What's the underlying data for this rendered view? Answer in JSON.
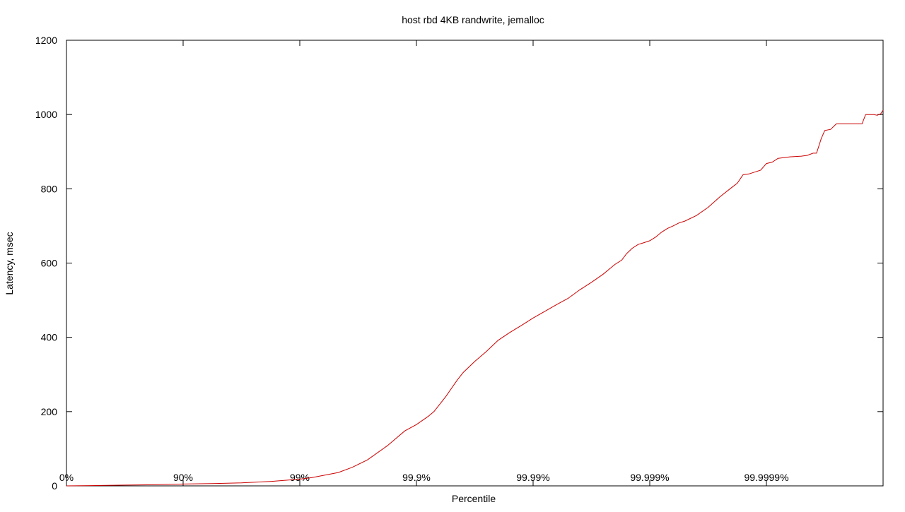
{
  "chart_data": {
    "type": "line",
    "title": "host rbd 4KB randwrite, jemalloc",
    "xlabel": "Percentile",
    "ylabel": "Latency, msec",
    "xscale": "log-nines",
    "xlim": [
      0,
      7
    ],
    "ylim": [
      0,
      1200
    ],
    "x_ticks": [
      {
        "value": 0,
        "label": "0%"
      },
      {
        "value": 1,
        "label": "90%"
      },
      {
        "value": 2,
        "label": "99%"
      },
      {
        "value": 3,
        "label": "99.9%"
      },
      {
        "value": 4,
        "label": "99.99%"
      },
      {
        "value": 5,
        "label": "99.999%"
      },
      {
        "value": 6,
        "label": "99.9999%"
      }
    ],
    "y_ticks": [
      {
        "value": 0,
        "label": "0"
      },
      {
        "value": 200,
        "label": "200"
      },
      {
        "value": 400,
        "label": "400"
      },
      {
        "value": 600,
        "label": "600"
      },
      {
        "value": 800,
        "label": "800"
      },
      {
        "value": 1000,
        "label": "1000"
      },
      {
        "value": 1200,
        "label": "1200"
      }
    ],
    "grid": false,
    "series": [
      {
        "color": "#cc0000",
        "points": [
          [
            0,
            0
          ],
          [
            0.25,
            1
          ],
          [
            0.5,
            2
          ],
          [
            0.75,
            3
          ],
          [
            1.0,
            5
          ],
          [
            1.25,
            6
          ],
          [
            1.5,
            8
          ],
          [
            1.75,
            12
          ],
          [
            2.0,
            18
          ],
          [
            2.1,
            22
          ],
          [
            2.2,
            28
          ],
          [
            2.33,
            36
          ],
          [
            2.45,
            50
          ],
          [
            2.58,
            70
          ],
          [
            2.75,
            108
          ],
          [
            2.9,
            148
          ],
          [
            3.0,
            165
          ],
          [
            3.1,
            187
          ],
          [
            3.15,
            200
          ],
          [
            3.25,
            240
          ],
          [
            3.35,
            285
          ],
          [
            3.4,
            305
          ],
          [
            3.5,
            335
          ],
          [
            3.6,
            362
          ],
          [
            3.7,
            392
          ],
          [
            3.8,
            413
          ],
          [
            3.9,
            432
          ],
          [
            4.0,
            452
          ],
          [
            4.1,
            470
          ],
          [
            4.2,
            488
          ],
          [
            4.3,
            505
          ],
          [
            4.4,
            528
          ],
          [
            4.5,
            548
          ],
          [
            4.6,
            570
          ],
          [
            4.7,
            596
          ],
          [
            4.76,
            608
          ],
          [
            4.8,
            625
          ],
          [
            4.85,
            640
          ],
          [
            4.9,
            650
          ],
          [
            4.95,
            655
          ],
          [
            5.0,
            660
          ],
          [
            5.05,
            670
          ],
          [
            5.1,
            683
          ],
          [
            5.15,
            693
          ],
          [
            5.2,
            700
          ],
          [
            5.25,
            708
          ],
          [
            5.3,
            713
          ],
          [
            5.4,
            728
          ],
          [
            5.5,
            750
          ],
          [
            5.6,
            778
          ],
          [
            5.7,
            803
          ],
          [
            5.75,
            815
          ],
          [
            5.8,
            838
          ],
          [
            5.85,
            840
          ],
          [
            5.95,
            850
          ],
          [
            6.0,
            868
          ],
          [
            6.05,
            872
          ],
          [
            6.1,
            882
          ],
          [
            6.2,
            886
          ],
          [
            6.3,
            888
          ],
          [
            6.35,
            890
          ],
          [
            6.4,
            896
          ],
          [
            6.43,
            896
          ],
          [
            6.47,
            935
          ],
          [
            6.5,
            957
          ],
          [
            6.55,
            960
          ],
          [
            6.6,
            975
          ],
          [
            6.82,
            975
          ],
          [
            6.85,
            1000
          ],
          [
            6.92,
            1000
          ],
          [
            6.95,
            998
          ],
          [
            6.98,
            1002
          ],
          [
            7.0,
            1012
          ]
        ]
      }
    ]
  }
}
